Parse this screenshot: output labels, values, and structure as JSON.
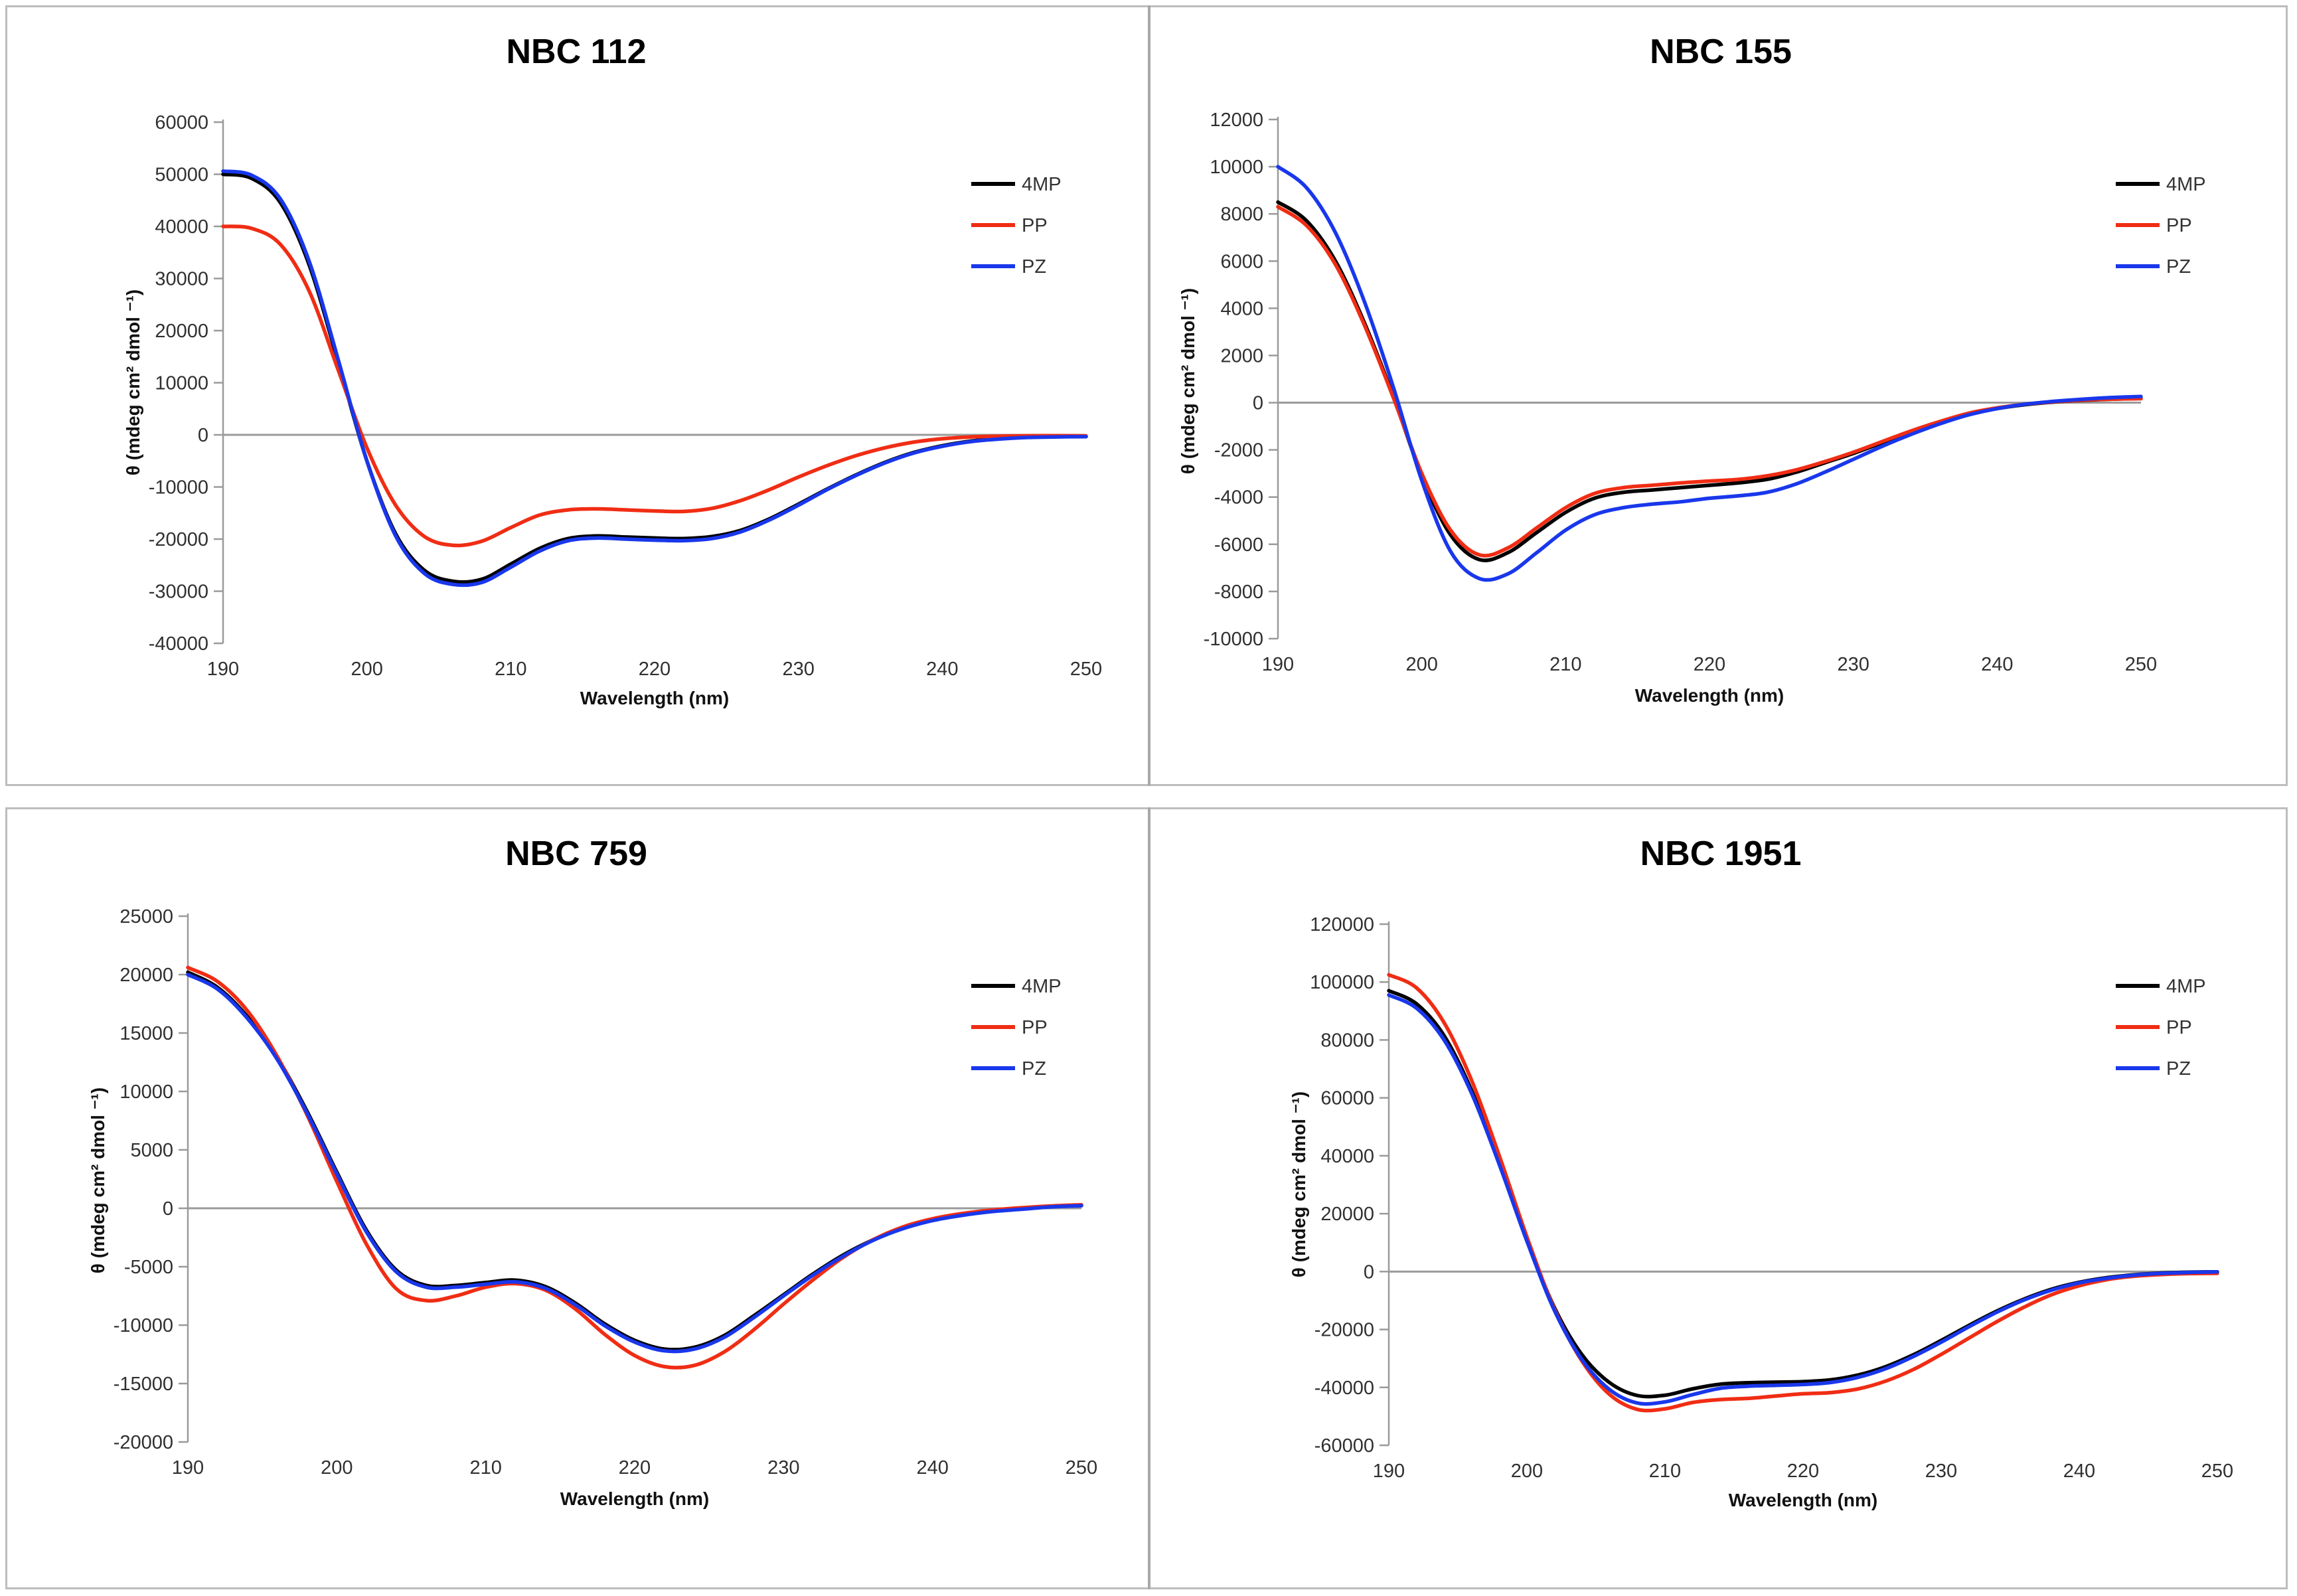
{
  "page": {
    "background": "#ffffff",
    "panel_border_color": "#bdbdbd",
    "divider_color": "#a8a8a8",
    "axis_color": "#9a9a9a",
    "tick_text_color": "#303030",
    "legend_text_color": "#333333"
  },
  "legend": {
    "items": [
      "4MP",
      "PP",
      "PZ"
    ]
  },
  "chart_data": [
    {
      "type": "line",
      "title": "NBC 112",
      "xlabel": "Wavelength (nm)",
      "ylabel": "θ (mdeg cm² dmol ⁻¹)",
      "xlim": [
        190,
        250
      ],
      "ylim": [
        -40000,
        60000
      ],
      "ytick_step": 10000,
      "xticks": [
        190,
        200,
        210,
        220,
        230,
        240,
        250
      ],
      "grid": "zero-line-only",
      "legend_position": "inside-right-top",
      "x": [
        190,
        192,
        194,
        196,
        198,
        200,
        202,
        204,
        206,
        208,
        210,
        212,
        214,
        216,
        218,
        220,
        222,
        224,
        226,
        228,
        230,
        232,
        234,
        236,
        238,
        240,
        242,
        244,
        246,
        248,
        250
      ],
      "series": [
        {
          "name": "4MP",
          "color": "#000000",
          "values": [
            50000,
            49200,
            44500,
            32500,
            14000,
            -5000,
            -19000,
            -26000,
            -28100,
            -27700,
            -24800,
            -21800,
            -19900,
            -19400,
            -19600,
            -19800,
            -19900,
            -19500,
            -18300,
            -16100,
            -13300,
            -10400,
            -7700,
            -5300,
            -3400,
            -2100,
            -1200,
            -700,
            -450,
            -350,
            -300
          ]
        },
        {
          "name": "PP",
          "color": "#F02D14",
          "values": [
            40000,
            39600,
            36500,
            27500,
            12500,
            -2500,
            -13500,
            -19500,
            -21200,
            -20400,
            -17800,
            -15400,
            -14400,
            -14200,
            -14400,
            -14600,
            -14700,
            -14100,
            -12600,
            -10500,
            -8100,
            -5900,
            -4000,
            -2500,
            -1400,
            -750,
            -400,
            -250,
            -180,
            -170,
            -200
          ]
        },
        {
          "name": "PZ",
          "color": "#1937EB",
          "values": [
            50600,
            49800,
            45200,
            33200,
            14500,
            -5000,
            -19400,
            -26600,
            -28700,
            -28300,
            -25400,
            -22300,
            -20300,
            -19800,
            -20000,
            -20200,
            -20300,
            -19900,
            -18600,
            -16300,
            -13500,
            -10500,
            -7800,
            -5400,
            -3500,
            -2200,
            -1300,
            -800,
            -500,
            -400,
            -350
          ]
        }
      ]
    },
    {
      "type": "line",
      "title": "NBC 155",
      "xlabel": "Wavelength (nm)",
      "ylabel": "θ (mdeg cm² dmol ⁻¹)",
      "xlim": [
        190,
        250
      ],
      "ylim": [
        -10000,
        12000
      ],
      "ytick_step": 2000,
      "xticks": [
        190,
        200,
        210,
        220,
        230,
        240,
        250
      ],
      "grid": "zero-line-only",
      "legend_position": "inside-right-top",
      "x": [
        190,
        192,
        194,
        196,
        198,
        200,
        202,
        204,
        206,
        208,
        210,
        212,
        214,
        216,
        218,
        220,
        222,
        224,
        226,
        228,
        230,
        232,
        234,
        236,
        238,
        240,
        242,
        244,
        246,
        248,
        250
      ],
      "series": [
        {
          "name": "4MP",
          "color": "#000000",
          "values": [
            8500,
            7700,
            6000,
            3400,
            300,
            -3100,
            -5600,
            -6650,
            -6350,
            -5500,
            -4650,
            -4050,
            -3800,
            -3700,
            -3600,
            -3500,
            -3400,
            -3250,
            -2950,
            -2550,
            -2150,
            -1700,
            -1250,
            -850,
            -500,
            -250,
            -80,
            30,
            100,
            150,
            180
          ]
        },
        {
          "name": "PP",
          "color": "#F02D14",
          "values": [
            8300,
            7500,
            5850,
            3300,
            250,
            -3000,
            -5400,
            -6450,
            -6150,
            -5300,
            -4450,
            -3850,
            -3600,
            -3500,
            -3400,
            -3320,
            -3250,
            -3100,
            -2850,
            -2500,
            -2100,
            -1650,
            -1200,
            -800,
            -450,
            -220,
            -60,
            40,
            110,
            150,
            170
          ]
        },
        {
          "name": "PZ",
          "color": "#1937EB",
          "values": [
            10000,
            9100,
            7200,
            4300,
            700,
            -3300,
            -6300,
            -7450,
            -7250,
            -6350,
            -5400,
            -4750,
            -4450,
            -4300,
            -4200,
            -4050,
            -3950,
            -3800,
            -3450,
            -2950,
            -2400,
            -1850,
            -1350,
            -900,
            -520,
            -250,
            -60,
            60,
            150,
            220,
            260
          ]
        }
      ]
    },
    {
      "type": "line",
      "title": "NBC 759",
      "xlabel": "Wavelength (nm)",
      "ylabel": "θ (mdeg cm² dmol ⁻¹)",
      "xlim": [
        190,
        250
      ],
      "ylim": [
        -20000,
        25000
      ],
      "ytick_step": 5000,
      "xticks": [
        190,
        200,
        210,
        220,
        230,
        240,
        250
      ],
      "grid": "zero-line-only",
      "legend_position": "inside-right-top",
      "x": [
        190,
        192,
        194,
        196,
        198,
        200,
        202,
        204,
        206,
        208,
        210,
        212,
        214,
        216,
        218,
        220,
        222,
        224,
        226,
        228,
        230,
        232,
        234,
        236,
        238,
        240,
        242,
        244,
        246,
        248,
        250
      ],
      "series": [
        {
          "name": "4MP",
          "color": "#000000",
          "values": [
            20200,
            18900,
            16400,
            12900,
            8300,
            3100,
            -1900,
            -5300,
            -6600,
            -6600,
            -6350,
            -6150,
            -6700,
            -8100,
            -9900,
            -11300,
            -12050,
            -11900,
            -10900,
            -9200,
            -7400,
            -5600,
            -4000,
            -2700,
            -1700,
            -1000,
            -550,
            -250,
            -50,
            150,
            250
          ]
        },
        {
          "name": "PP",
          "color": "#F02D14",
          "values": [
            20600,
            19400,
            16900,
            13000,
            8000,
            2300,
            -3100,
            -6900,
            -7900,
            -7500,
            -6750,
            -6450,
            -7000,
            -8600,
            -10800,
            -12600,
            -13550,
            -13450,
            -12300,
            -10400,
            -8200,
            -6100,
            -4200,
            -2700,
            -1600,
            -900,
            -450,
            -150,
            50,
            200,
            300
          ]
        },
        {
          "name": "PZ",
          "color": "#1937EB",
          "values": [
            20000,
            18750,
            16250,
            12750,
            8150,
            2950,
            -2050,
            -5450,
            -6750,
            -6750,
            -6500,
            -6300,
            -6850,
            -8250,
            -10050,
            -11450,
            -12200,
            -12050,
            -11050,
            -9350,
            -7500,
            -5700,
            -4100,
            -2750,
            -1750,
            -1050,
            -600,
            -280,
            -80,
            120,
            220
          ]
        }
      ]
    },
    {
      "type": "line",
      "title": "NBC 1951",
      "xlabel": "Wavelength (nm)",
      "ylabel": "θ (mdeg cm² dmol ⁻¹)",
      "xlim": [
        190,
        250
      ],
      "ylim": [
        -60000,
        120000
      ],
      "ytick_step": 20000,
      "xticks": [
        190,
        200,
        210,
        220,
        230,
        240,
        250
      ],
      "grid": "zero-line-only",
      "legend_position": "inside-right-top",
      "x": [
        190,
        192,
        194,
        196,
        198,
        200,
        202,
        204,
        206,
        208,
        210,
        212,
        214,
        216,
        218,
        220,
        222,
        224,
        226,
        228,
        230,
        232,
        234,
        236,
        238,
        240,
        242,
        244,
        246,
        248,
        250
      ],
      "series": [
        {
          "name": "4MP",
          "color": "#000000",
          "values": [
            97000,
            92500,
            81500,
            62500,
            37500,
            11000,
            -12500,
            -28800,
            -38400,
            -42800,
            -42700,
            -40500,
            -38900,
            -38400,
            -38200,
            -38000,
            -37400,
            -35700,
            -32800,
            -28700,
            -23800,
            -18600,
            -13700,
            -9500,
            -6100,
            -3700,
            -2100,
            -1100,
            -500,
            -200,
            -100
          ]
        },
        {
          "name": "PP",
          "color": "#F02D14",
          "values": [
            102500,
            98000,
            86000,
            66000,
            40000,
            12000,
            -13000,
            -31000,
            -42500,
            -47600,
            -47400,
            -45200,
            -44200,
            -43800,
            -43000,
            -42200,
            -41800,
            -40500,
            -37800,
            -33800,
            -28600,
            -23000,
            -17400,
            -12300,
            -8000,
            -4900,
            -2800,
            -1600,
            -1000,
            -700,
            -600
          ]
        },
        {
          "name": "PZ",
          "color": "#1937EB",
          "values": [
            95500,
            91000,
            80000,
            61500,
            37000,
            10500,
            -13500,
            -30500,
            -40800,
            -45400,
            -45000,
            -42500,
            -40300,
            -39600,
            -39300,
            -39000,
            -38300,
            -36500,
            -33500,
            -29300,
            -24400,
            -19100,
            -14100,
            -9800,
            -6400,
            -3900,
            -2300,
            -1200,
            -600,
            -300,
            -100
          ]
        }
      ]
    }
  ]
}
